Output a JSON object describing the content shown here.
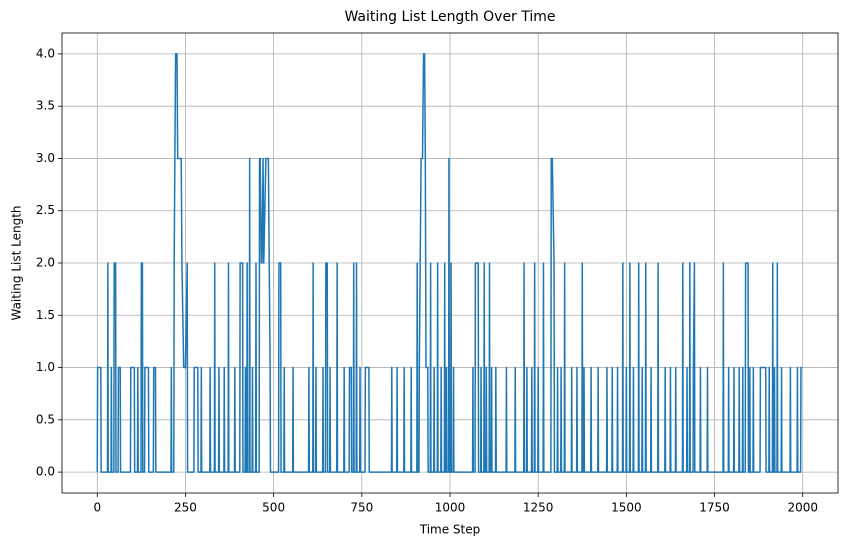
{
  "chart_data": {
    "type": "line",
    "title": "Waiting List Length Over Time",
    "x_label": "Time Step",
    "y_label": "Waiting List Length",
    "color": "#1f77b4",
    "grid": true,
    "xlim": [
      -100,
      2100
    ],
    "xticks": [
      0,
      250,
      500,
      750,
      1000,
      1250,
      1500,
      1750,
      2000
    ],
    "ylim": [
      -0.2,
      4.2
    ],
    "yticks": [
      {
        "value": 0,
        "label": "0.0"
      },
      {
        "value": 0.5,
        "label": "0.5"
      },
      {
        "value": 1,
        "label": "1.0"
      },
      {
        "value": 1.5,
        "label": "1.5"
      },
      {
        "value": 2,
        "label": "2.0"
      },
      {
        "value": 2.5,
        "label": "2.5"
      },
      {
        "value": 3,
        "label": "3.0"
      },
      {
        "value": 3.5,
        "label": "3.5"
      },
      {
        "value": 4,
        "label": "4.0"
      }
    ],
    "x": [
      0,
      1,
      10,
      11,
      29,
      30,
      31,
      39,
      40,
      41,
      47,
      48,
      52,
      53,
      59,
      60,
      65,
      66,
      94,
      95,
      105,
      106,
      114,
      115,
      116,
      124,
      125,
      128,
      129,
      134,
      135,
      145,
      146,
      159,
      160,
      165,
      166,
      209,
      210,
      211,
      217,
      218,
      222,
      226,
      228,
      238,
      240,
      245,
      250,
      255,
      256,
      274,
      275,
      285,
      286,
      294,
      295,
      296,
      319,
      320,
      321,
      332,
      333,
      334,
      344,
      345,
      346,
      359,
      360,
      361,
      371,
      372,
      373,
      389,
      390,
      391,
      404,
      405,
      412,
      413,
      419,
      420,
      421,
      424,
      425,
      426,
      431,
      432,
      433,
      439,
      440,
      441,
      449,
      450,
      451,
      459,
      460,
      462,
      465,
      467,
      470,
      472,
      478,
      485,
      490,
      491,
      514,
      515,
      520,
      521,
      529,
      530,
      531,
      554,
      555,
      556,
      599,
      600,
      601,
      611,
      612,
      613,
      619,
      620,
      621,
      639,
      640,
      641,
      647,
      648,
      652,
      653,
      659,
      660,
      661,
      679,
      680,
      681,
      699,
      700,
      701,
      714,
      715,
      720,
      721,
      726,
      727,
      728,
      734,
      735,
      736,
      744,
      745,
      746,
      759,
      760,
      770,
      771,
      834,
      835,
      836,
      849,
      850,
      851,
      869,
      870,
      871,
      889,
      890,
      891,
      906,
      907,
      908,
      912,
      913,
      918,
      922,
      925,
      928,
      930,
      932,
      937,
      938,
      944,
      945,
      946,
      954,
      955,
      956,
      964,
      965,
      966,
      974,
      975,
      976,
      984,
      985,
      986,
      989,
      990,
      991,
      996,
      997,
      998,
      1002,
      1003,
      1004,
      1009,
      1010,
      1011,
      1064,
      1065,
      1066,
      1071,
      1072,
      1080,
      1081,
      1087,
      1088,
      1089,
      1096,
      1097,
      1098,
      1102,
      1103,
      1104,
      1111,
      1112,
      1113,
      1117,
      1118,
      1119,
      1129,
      1130,
      1131,
      1159,
      1160,
      1161,
      1184,
      1185,
      1186,
      1209,
      1210,
      1211,
      1217,
      1218,
      1219,
      1231,
      1232,
      1233,
      1239,
      1240,
      1241,
      1249,
      1250,
      1251,
      1264,
      1265,
      1266,
      1286,
      1287,
      1290,
      1295,
      1296,
      1304,
      1305,
      1306,
      1314,
      1315,
      1316,
      1324,
      1325,
      1326,
      1344,
      1345,
      1346,
      1359,
      1360,
      1361,
      1374,
      1375,
      1376,
      1379,
      1380,
      1381,
      1399,
      1400,
      1401,
      1419,
      1420,
      1421,
      1444,
      1445,
      1446,
      1459,
      1460,
      1461,
      1474,
      1475,
      1476,
      1489,
      1490,
      1491,
      1499,
      1500,
      1501,
      1509,
      1510,
      1511,
      1519,
      1520,
      1521,
      1534,
      1535,
      1536,
      1544,
      1545,
      1546,
      1554,
      1555,
      1556,
      1569,
      1570,
      1571,
      1589,
      1590,
      1591,
      1609,
      1610,
      1611,
      1624,
      1625,
      1626,
      1639,
      1640,
      1641,
      1659,
      1660,
      1661,
      1671,
      1672,
      1673,
      1679,
      1680,
      1681,
      1689,
      1690,
      1693,
      1694,
      1709,
      1710,
      1711,
      1729,
      1730,
      1731,
      1774,
      1775,
      1776,
      1789,
      1790,
      1791,
      1804,
      1805,
      1806,
      1819,
      1820,
      1821,
      1829,
      1830,
      1831,
      1837,
      1838,
      1845,
      1846,
      1849,
      1850,
      1851,
      1859,
      1860,
      1861,
      1879,
      1880,
      1895,
      1896,
      1904,
      1905,
      1906,
      1914,
      1915,
      1916,
      1919,
      1920,
      1921,
      1927,
      1928,
      1929,
      1939,
      1940,
      1941,
      1964,
      1965,
      1966,
      1984,
      1985,
      1986,
      1994,
      1995,
      1999
    ],
    "values": [
      0,
      1,
      1,
      0,
      0,
      2,
      0,
      0,
      1,
      0,
      0,
      2,
      2,
      0,
      0,
      1,
      1,
      0,
      0,
      1,
      1,
      0,
      0,
      1,
      0,
      0,
      2,
      2,
      0,
      0,
      1,
      1,
      0,
      0,
      1,
      1,
      0,
      0,
      1,
      0,
      0,
      2,
      4,
      4,
      3,
      3,
      2,
      1,
      1,
      2,
      0,
      0,
      1,
      1,
      0,
      0,
      1,
      0,
      0,
      1,
      0,
      0,
      2,
      0,
      0,
      1,
      0,
      0,
      1,
      0,
      0,
      2,
      0,
      0,
      1,
      0,
      0,
      2,
      2,
      0,
      0,
      1,
      0,
      0,
      2,
      0,
      0,
      3,
      0,
      0,
      1,
      0,
      0,
      2,
      0,
      0,
      3,
      3,
      2,
      2,
      3,
      2,
      3,
      3,
      1,
      0,
      0,
      2,
      2,
      0,
      0,
      1,
      0,
      0,
      1,
      0,
      0,
      1,
      0,
      0,
      2,
      0,
      0,
      1,
      0,
      0,
      1,
      0,
      0,
      2,
      2,
      0,
      0,
      1,
      0,
      0,
      2,
      0,
      0,
      1,
      0,
      0,
      1,
      1,
      0,
      0,
      2,
      0,
      0,
      2,
      0,
      0,
      1,
      0,
      0,
      1,
      1,
      0,
      0,
      1,
      0,
      0,
      1,
      0,
      0,
      1,
      0,
      0,
      1,
      0,
      0,
      2,
      0,
      0,
      1,
      3,
      3,
      4,
      4,
      3,
      1,
      1,
      0,
      0,
      2,
      0,
      0,
      1,
      0,
      0,
      2,
      0,
      0,
      1,
      0,
      0,
      2,
      0,
      0,
      1,
      0,
      0,
      3,
      0,
      0,
      2,
      0,
      0,
      1,
      0,
      0,
      1,
      0,
      0,
      2,
      2,
      0,
      0,
      1,
      0,
      0,
      2,
      0,
      0,
      1,
      0,
      0,
      2,
      0,
      0,
      1,
      0,
      0,
      1,
      0,
      0,
      1,
      0,
      0,
      1,
      0,
      0,
      2,
      0,
      0,
      1,
      0,
      0,
      1,
      0,
      0,
      2,
      0,
      0,
      1,
      0,
      0,
      2,
      0,
      0,
      3,
      3,
      2,
      0,
      0,
      1,
      0,
      0,
      1,
      0,
      0,
      2,
      0,
      0,
      1,
      0,
      0,
      1,
      0,
      0,
      2,
      0,
      0,
      1,
      0,
      0,
      1,
      0,
      0,
      1,
      0,
      0,
      1,
      0,
      0,
      1,
      0,
      0,
      1,
      0,
      0,
      2,
      0,
      0,
      1,
      0,
      0,
      2,
      0,
      0,
      1,
      0,
      0,
      2,
      0,
      0,
      1,
      0,
      0,
      2,
      0,
      0,
      1,
      0,
      0,
      2,
      0,
      0,
      1,
      0,
      0,
      1,
      0,
      0,
      1,
      0,
      0,
      2,
      0,
      0,
      1,
      0,
      0,
      2,
      0,
      0,
      1,
      2,
      0,
      0,
      1,
      0,
      0,
      1,
      0,
      0,
      2,
      0,
      0,
      1,
      0,
      0,
      1,
      0,
      0,
      1,
      0,
      0,
      1,
      0,
      0,
      2,
      2,
      0,
      0,
      1,
      0,
      0,
      1,
      0,
      0,
      1,
      1,
      0,
      0,
      1,
      0,
      0,
      2,
      0,
      0,
      1,
      0,
      0,
      2,
      0,
      0,
      1,
      0,
      0,
      1,
      0,
      0,
      1,
      0,
      0,
      1,
      1
    ]
  }
}
